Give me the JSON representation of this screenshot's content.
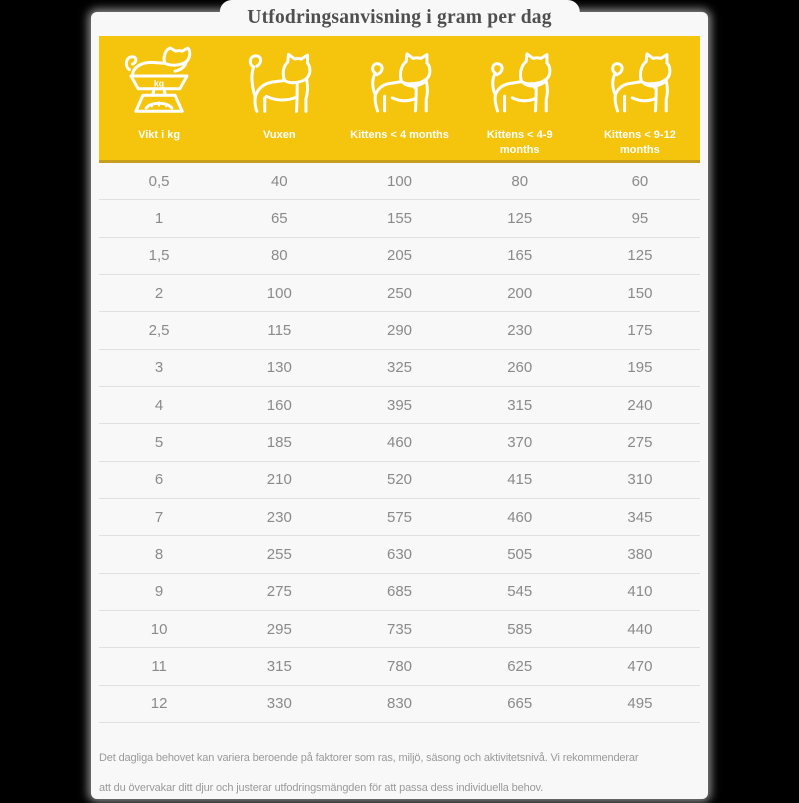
{
  "page": {
    "title": "Utfodringsanvisning i gram per dag"
  },
  "chart_data": {
    "type": "table",
    "title": "Utfodringsanvisning i gram per dag",
    "columns": [
      {
        "label": "Vikt i kg",
        "icon": "scale-with-cat-icon"
      },
      {
        "label": "Vuxen",
        "icon": "adult-cat-icon"
      },
      {
        "label": "Kittens < 4 months",
        "icon": "kitten-icon"
      },
      {
        "label": "Kittens < 4-9 months",
        "icon": "kitten-icon"
      },
      {
        "label": "Kittens < 9-12 months",
        "icon": "kitten-icon"
      }
    ],
    "rows": [
      [
        "0,5",
        "40",
        "100",
        "80",
        "60"
      ],
      [
        "1",
        "65",
        "155",
        "125",
        "95"
      ],
      [
        "1,5",
        "80",
        "205",
        "165",
        "125"
      ],
      [
        "2",
        "100",
        "250",
        "200",
        "150"
      ],
      [
        "2,5",
        "115",
        "290",
        "230",
        "175"
      ],
      [
        "3",
        "130",
        "325",
        "260",
        "195"
      ],
      [
        "4",
        "160",
        "395",
        "315",
        "240"
      ],
      [
        "5",
        "185",
        "460",
        "370",
        "275"
      ],
      [
        "6",
        "210",
        "520",
        "415",
        "310"
      ],
      [
        "7",
        "230",
        "575",
        "460",
        "345"
      ],
      [
        "8",
        "255",
        "630",
        "505",
        "380"
      ],
      [
        "9",
        "275",
        "685",
        "545",
        "410"
      ],
      [
        "10",
        "295",
        "735",
        "585",
        "440"
      ],
      [
        "11",
        "315",
        "780",
        "625",
        "470"
      ],
      [
        "12",
        "330",
        "830",
        "665",
        "495"
      ]
    ],
    "units": "gram per dag",
    "scale_icon_label": "kg"
  },
  "footer": {
    "line1": "Det dagliga behovet kan variera beroende på faktorer som ras, miljö, säsong och aktivitetsnivå. Vi rekommenderar",
    "line2": "att du övervakar ditt djur och justerar utfodringsmängden för att passa dess individuella behov."
  },
  "colors": {
    "brand_yellow": "#F5C40D",
    "yellow_border": "#C79F1F",
    "card_bg": "#F8F8F8",
    "row_separator": "#E0E0E0",
    "value_text": "#8A8A8A",
    "title_text": "#4F4F4F",
    "header_label_text": "#FFFFFF",
    "footer_text": "#9A9A9A",
    "page_bg": "#000000"
  }
}
